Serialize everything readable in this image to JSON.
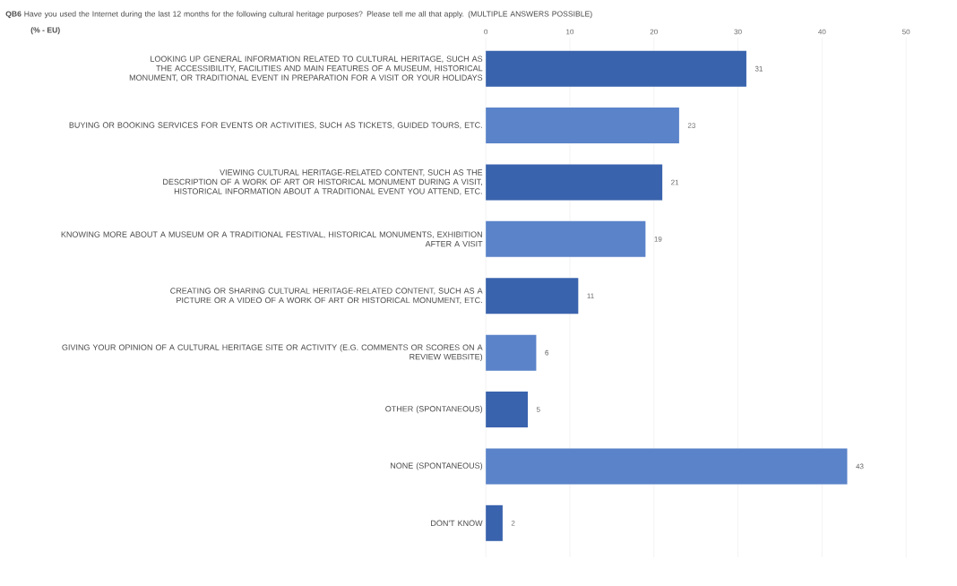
{
  "chart_data": {
    "type": "bar",
    "orientation": "horizontal",
    "title": "**QB6** Have you used the Internet during the last 12 months for the following cultural heritage purposes? Please tell me all that apply. (MULTIPLE ANSWERS POSSIBLE)",
    "subtitle": "**(% - EU)**",
    "categories": [
      "LOOKING UP GENERAL INFORMATION RELATED TO CULTURAL HERITAGE, SUCH AS THE ACCESSIBILITY, FACILITIES AND MAIN FEATURES OF A MUSEUM, HISTORICAL MONUMENT, OR TRADITIONAL EVENT IN PREPARATION FOR A VISIT OR YOUR HOLIDAYS",
      "BUYING OR BOOKING SERVICES FOR EVENTS OR ACTIVITIES, SUCH AS TICKETS, GUIDED TOURS, ETC.",
      "VIEWING CULTURAL HERITAGE-RELATED CONTENT, SUCH AS THE DESCRIPTION OF A WORK OF ART OR HISTORICAL MONUMENT DURING A VISIT, HISTORICAL INFORMATION ABOUT A TRADITIONAL EVENT YOU ATTEND, ETC.",
      "KNOWING MORE ABOUT A MUSEUM OR A TRADITIONAL FESTIVAL, HISTORICAL MONUMENTS, EXHIBITION AFTER A VISIT",
      "CREATING OR SHARING CULTURAL HERITAGE-RELATED CONTENT, SUCH AS A PICTURE OR A VIDEO OF A WORK OF ART OR HISTORICAL MONUMENT, ETC.",
      "GIVING YOUR OPINION OF A CULTURAL HERITAGE SITE OR ACTIVITY (E.G. COMMENTS OR SCORES ON A REVIEW WEBSITE)",
      "OTHER (SPONTANEOUS)",
      "NONE (SPONTANEOUS)",
      "DON'T KNOW"
    ],
    "values": [
      31,
      23,
      21,
      19,
      11,
      6,
      5,
      43,
      2
    ],
    "colors": [
      "#3a63ad",
      "#5a83c9",
      "#3a63ad",
      "#5a83c9",
      "#3a63ad",
      "#5a83c9",
      "#3a63ad",
      "#5a83c9",
      "#3a63ad"
    ],
    "data_labels": true,
    "xlim": [
      0,
      50
    ],
    "xticks": [
      0,
      10,
      20,
      30,
      40,
      50
    ],
    "grid": "x"
  }
}
